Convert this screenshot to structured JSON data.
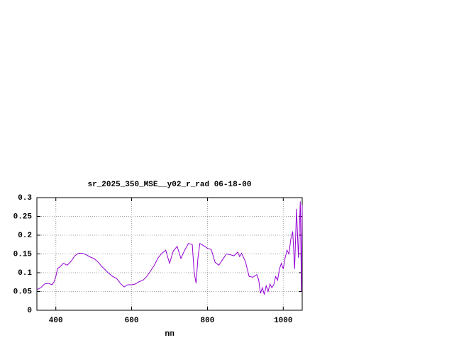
{
  "chart_data": {
    "type": "line",
    "title": "sr_2025_350_MSE__y02_r_rad 06-18-00",
    "x_label": "nm",
    "xlim": [
      350,
      1050
    ],
    "xticks": [
      400,
      600,
      800,
      1000
    ],
    "ylim": [
      0,
      0.3
    ],
    "yticks": [
      0,
      0.05,
      0.1,
      0.15,
      0.2,
      0.25,
      0.3
    ],
    "grid": true,
    "series": [
      {
        "name": "sr_2025_350_MSE__y02_r_rad",
        "color": "#9400d3",
        "x": [
          350,
          360,
          370,
          380,
          390,
          395,
          400,
          405,
          410,
          420,
          430,
          440,
          450,
          460,
          470,
          480,
          490,
          500,
          510,
          520,
          530,
          540,
          550,
          560,
          570,
          580,
          590,
          600,
          610,
          620,
          630,
          640,
          650,
          660,
          670,
          680,
          690,
          700,
          710,
          720,
          730,
          740,
          750,
          760,
          765,
          770,
          775,
          780,
          790,
          800,
          810,
          820,
          830,
          840,
          850,
          860,
          870,
          880,
          885,
          890,
          900,
          910,
          920,
          930,
          935,
          940,
          945,
          950,
          955,
          960,
          965,
          970,
          975,
          980,
          985,
          990,
          995,
          1000,
          1005,
          1010,
          1015,
          1020,
          1025,
          1030,
          1035,
          1040,
          1045,
          1048,
          1050
        ],
        "values": [
          0.055,
          0.06,
          0.07,
          0.072,
          0.068,
          0.075,
          0.09,
          0.112,
          0.115,
          0.125,
          0.12,
          0.13,
          0.145,
          0.152,
          0.152,
          0.148,
          0.142,
          0.138,
          0.13,
          0.118,
          0.108,
          0.098,
          0.09,
          0.085,
          0.072,
          0.062,
          0.068,
          0.068,
          0.07,
          0.076,
          0.08,
          0.09,
          0.105,
          0.12,
          0.14,
          0.152,
          0.16,
          0.125,
          0.158,
          0.17,
          0.138,
          0.16,
          0.178,
          0.175,
          0.1,
          0.072,
          0.14,
          0.178,
          0.172,
          0.165,
          0.162,
          0.128,
          0.12,
          0.135,
          0.15,
          0.148,
          0.145,
          0.155,
          0.143,
          0.152,
          0.13,
          0.09,
          0.088,
          0.095,
          0.082,
          0.045,
          0.06,
          0.042,
          0.065,
          0.05,
          0.07,
          0.06,
          0.068,
          0.09,
          0.08,
          0.11,
          0.125,
          0.11,
          0.14,
          0.16,
          0.15,
          0.19,
          0.21,
          0.11,
          0.27,
          0.14,
          0.29,
          0.05,
          0.28
        ]
      }
    ]
  }
}
